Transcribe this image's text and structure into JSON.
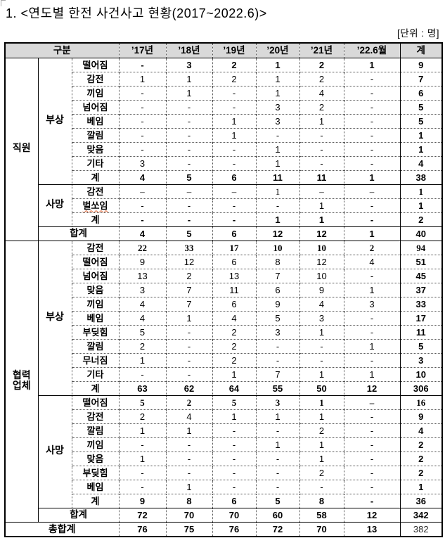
{
  "title": "1. <연도별 한전 사건사고 현황(2017~2022.6)>",
  "unit_note": "[단위 : 명]",
  "table": {
    "corner_label": "구분",
    "year_columns": [
      "’17년",
      "’18년",
      "’19년",
      "’20년",
      "’21년",
      "’22.6월",
      "계"
    ],
    "colors": {
      "header_bg": "#d9d9d9",
      "border": "#000000",
      "inner_dotted": "#555555",
      "misspell_underline": "#e06a3c"
    },
    "rows": [
      {
        "group": "직원",
        "sub": "부상",
        "label": "떨어짐",
        "values": [
          "-",
          "3",
          "2",
          "1",
          "2",
          "1",
          "9"
        ],
        "flags": [
          "bold"
        ]
      },
      {
        "group": "직원",
        "sub": "부상",
        "label": "감전",
        "values": [
          "1",
          "1",
          "2",
          "1",
          "2",
          "-",
          "7"
        ],
        "flags": []
      },
      {
        "group": "직원",
        "sub": "부상",
        "label": "끼임",
        "values": [
          "-",
          "1",
          "-",
          "1",
          "4",
          "-",
          "6"
        ],
        "flags": []
      },
      {
        "group": "직원",
        "sub": "부상",
        "label": "넘어짐",
        "values": [
          "-",
          "-",
          "-",
          "3",
          "2",
          "-",
          "5"
        ],
        "flags": []
      },
      {
        "group": "직원",
        "sub": "부상",
        "label": "베임",
        "values": [
          "-",
          "-",
          "1",
          "3",
          "1",
          "-",
          "5"
        ],
        "flags": []
      },
      {
        "group": "직원",
        "sub": "부상",
        "label": "깔림",
        "values": [
          "-",
          "-",
          "1",
          "-",
          "-",
          "-",
          "1"
        ],
        "flags": []
      },
      {
        "group": "직원",
        "sub": "부상",
        "label": "맞음",
        "values": [
          "-",
          "-",
          "-",
          "1",
          "-",
          "-",
          "1"
        ],
        "flags": []
      },
      {
        "group": "직원",
        "sub": "부상",
        "label": "기타",
        "values": [
          "3",
          "-",
          "-",
          "1",
          "-",
          "-",
          "4"
        ],
        "flags": []
      },
      {
        "group": "직원",
        "sub": "부상",
        "label": "계",
        "values": [
          "4",
          "5",
          "6",
          "11",
          "11",
          "1",
          "38"
        ],
        "flags": [
          "bold"
        ]
      },
      {
        "group": "직원",
        "sub": "사망",
        "label": "감전",
        "values": [
          "–",
          "–",
          "–",
          "1",
          "–",
          "–",
          "1"
        ],
        "flags": [
          "serif",
          "topline"
        ]
      },
      {
        "group": "직원",
        "sub": "사망",
        "label": "벌쏘임",
        "values": [
          "-",
          "-",
          "-",
          "-",
          "1",
          "-",
          "1"
        ],
        "flags": [
          "wavy"
        ]
      },
      {
        "group": "직원",
        "sub": "사망",
        "label": "계",
        "values": [
          "-",
          "-",
          "-",
          "1",
          "1",
          "-",
          "2"
        ],
        "flags": [
          "bold"
        ]
      },
      {
        "group": "직원",
        "type": "subtotal",
        "label": "합계",
        "values": [
          "4",
          "5",
          "6",
          "12",
          "12",
          "1",
          "40"
        ],
        "flags": [
          "bold",
          "topline"
        ]
      },
      {
        "group": "협력\n업체",
        "sub": "부상",
        "label": "감전",
        "values": [
          "22",
          "33",
          "17",
          "10",
          "10",
          "2",
          "94"
        ],
        "flags": [
          "serif",
          "bold",
          "topline"
        ]
      },
      {
        "group": "협력\n업체",
        "sub": "부상",
        "label": "떨어짐",
        "values": [
          "9",
          "12",
          "6",
          "8",
          "12",
          "4",
          "51"
        ],
        "flags": []
      },
      {
        "group": "협력\n업체",
        "sub": "부상",
        "label": "넘어짐",
        "values": [
          "13",
          "2",
          "13",
          "7",
          "10",
          "-",
          "45"
        ],
        "flags": []
      },
      {
        "group": "협력\n업체",
        "sub": "부상",
        "label": "맞음",
        "values": [
          "3",
          "7",
          "11",
          "6",
          "9",
          "1",
          "37"
        ],
        "flags": []
      },
      {
        "group": "협력\n업체",
        "sub": "부상",
        "label": "끼임",
        "values": [
          "4",
          "7",
          "6",
          "9",
          "4",
          "3",
          "33"
        ],
        "flags": []
      },
      {
        "group": "협력\n업체",
        "sub": "부상",
        "label": "베임",
        "values": [
          "4",
          "1",
          "4",
          "5",
          "3",
          "-",
          "17"
        ],
        "flags": []
      },
      {
        "group": "협력\n업체",
        "sub": "부상",
        "label": "부딪힘",
        "values": [
          "5",
          "-",
          "2",
          "3",
          "1",
          "-",
          "11"
        ],
        "flags": []
      },
      {
        "group": "협력\n업체",
        "sub": "부상",
        "label": "깔림",
        "values": [
          "2",
          "-",
          "2",
          "-",
          "-",
          "1",
          "5"
        ],
        "flags": []
      },
      {
        "group": "협력\n업체",
        "sub": "부상",
        "label": "무너짐",
        "values": [
          "1",
          "-",
          "2",
          "-",
          "-",
          "-",
          "3"
        ],
        "flags": []
      },
      {
        "group": "협력\n업체",
        "sub": "부상",
        "label": "기타",
        "values": [
          "-",
          "-",
          "1",
          "7",
          "1",
          "1",
          "10"
        ],
        "flags": []
      },
      {
        "group": "협력\n업체",
        "sub": "부상",
        "label": "계",
        "values": [
          "63",
          "62",
          "64",
          "55",
          "50",
          "12",
          "306"
        ],
        "flags": [
          "bold"
        ]
      },
      {
        "group": "협력\n업체",
        "sub": "사망",
        "label": "떨어짐",
        "values": [
          "5",
          "2",
          "5",
          "3",
          "1",
          "–",
          "16"
        ],
        "flags": [
          "serif",
          "bold",
          "topline"
        ]
      },
      {
        "group": "협력\n업체",
        "sub": "사망",
        "label": "감전",
        "values": [
          "2",
          "4",
          "1",
          "1",
          "1",
          "-",
          "9"
        ],
        "flags": []
      },
      {
        "group": "협력\n업체",
        "sub": "사망",
        "label": "깔림",
        "values": [
          "1",
          "1",
          "-",
          "-",
          "2",
          "-",
          "4"
        ],
        "flags": []
      },
      {
        "group": "협력\n업체",
        "sub": "사망",
        "label": "끼임",
        "values": [
          "-",
          "-",
          "-",
          "1",
          "1",
          "-",
          "2"
        ],
        "flags": []
      },
      {
        "group": "협력\n업체",
        "sub": "사망",
        "label": "맞음",
        "values": [
          "1",
          "-",
          "-",
          "-",
          "1",
          "-",
          "2"
        ],
        "flags": []
      },
      {
        "group": "협력\n업체",
        "sub": "사망",
        "label": "부딪힘",
        "values": [
          "-",
          "-",
          "-",
          "-",
          "2",
          "-",
          "2"
        ],
        "flags": []
      },
      {
        "group": "협력\n업체",
        "sub": "사망",
        "label": "베임",
        "values": [
          "-",
          "1",
          "-",
          "-",
          "-",
          "-",
          "1"
        ],
        "flags": []
      },
      {
        "group": "협력\n업체",
        "sub": "사망",
        "label": "계",
        "values": [
          "9",
          "8",
          "6",
          "5",
          "8",
          "-",
          "36"
        ],
        "flags": [
          "bold"
        ]
      },
      {
        "group": "협력\n업체",
        "type": "subtotal",
        "label": "합계",
        "values": [
          "72",
          "70",
          "70",
          "60",
          "58",
          "12",
          "342"
        ],
        "flags": [
          "bold",
          "topline"
        ]
      },
      {
        "type": "grandtotal",
        "label": "총합계",
        "values": [
          "76",
          "75",
          "76",
          "72",
          "70",
          "13",
          "382"
        ],
        "flags": [
          "bold",
          "topline"
        ]
      }
    ]
  }
}
